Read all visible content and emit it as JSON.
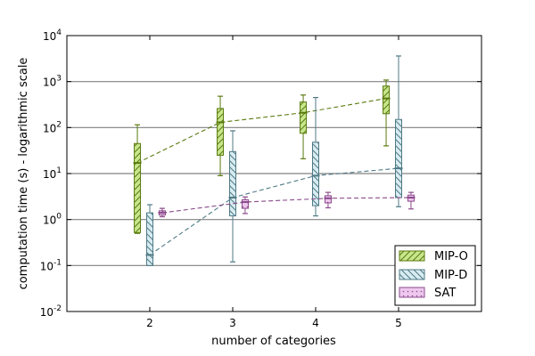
{
  "chart_data": {
    "type": "box",
    "title": "",
    "xlabel": "number of categories",
    "ylabel": "computation time (s) - logarithmic scale",
    "yscale": "log",
    "ylim": [
      0.01,
      10000
    ],
    "xlim": [
      1,
      6
    ],
    "x_ticks": [
      "2",
      "3",
      "4",
      "5"
    ],
    "y_ticks": [
      {
        "value": 0.01,
        "base": "10",
        "exp": "-2"
      },
      {
        "value": 0.1,
        "base": "10",
        "exp": "-1"
      },
      {
        "value": 1,
        "base": "10",
        "exp": "0"
      },
      {
        "value": 10,
        "base": "10",
        "exp": "1"
      },
      {
        "value": 100,
        "base": "10",
        "exp": "2"
      },
      {
        "value": 1000,
        "base": "10",
        "exp": "3"
      },
      {
        "value": 10000,
        "base": "10",
        "exp": "4"
      }
    ],
    "grid": "horizontal at major ticks",
    "legend_position": "lower-right",
    "series": [
      {
        "name": "MIP-O",
        "color": "#5a7a10",
        "fill": "#c8e68c",
        "hatch": "diagonal",
        "line_style": "dashed",
        "offset": -0.15,
        "boxes": [
          {
            "x": 2,
            "whisker_low": 0.5,
            "q1": 0.52,
            "median": 17,
            "q3": 45,
            "whisker_high": 115
          },
          {
            "x": 3,
            "whisker_low": 9,
            "q1": 25,
            "median": 130,
            "q3": 260,
            "whisker_high": 480
          },
          {
            "x": 4,
            "whisker_low": 21,
            "q1": 75,
            "median": 210,
            "q3": 360,
            "whisker_high": 510
          },
          {
            "x": 5,
            "whisker_low": 40,
            "q1": 200,
            "median": 430,
            "q3": 800,
            "whisker_high": 1080
          }
        ]
      },
      {
        "name": "MIP-D",
        "color": "#4f7a85",
        "fill": "#d8ecf2",
        "hatch": "backslash",
        "line_style": "dashed",
        "offset": 0,
        "boxes": [
          {
            "x": 2,
            "whisker_low": 0.1,
            "q1": 0.1,
            "median": 0.17,
            "q3": 1.4,
            "whisker_high": 2.1
          },
          {
            "x": 3,
            "whisker_low": 0.12,
            "q1": 1.2,
            "median": 3.0,
            "q3": 30,
            "whisker_high": 85
          },
          {
            "x": 4,
            "whisker_low": 1.2,
            "q1": 2.0,
            "median": 9,
            "q3": 48,
            "whisker_high": 450
          },
          {
            "x": 5,
            "whisker_low": 1.9,
            "q1": 3.0,
            "median": 13,
            "q3": 150,
            "whisker_high": 3600
          }
        ]
      },
      {
        "name": "SAT",
        "color": "#8a4a8a",
        "fill": "#eec8ee",
        "hatch": "dots",
        "line_style": "dashed",
        "offset": 0.15,
        "boxes": [
          {
            "x": 2,
            "whisker_low": 1.15,
            "q1": 1.25,
            "median": 1.4,
            "q3": 1.55,
            "whisker_high": 1.75
          },
          {
            "x": 3,
            "whisker_low": 1.35,
            "q1": 1.75,
            "median": 2.4,
            "q3": 2.7,
            "whisker_high": 3.1
          },
          {
            "x": 4,
            "whisker_low": 1.8,
            "q1": 2.3,
            "median": 2.9,
            "q3": 3.3,
            "whisker_high": 3.9
          },
          {
            "x": 5,
            "whisker_low": 1.7,
            "q1": 2.5,
            "median": 3.0,
            "q3": 3.4,
            "whisker_high": 3.9
          }
        ]
      }
    ]
  }
}
